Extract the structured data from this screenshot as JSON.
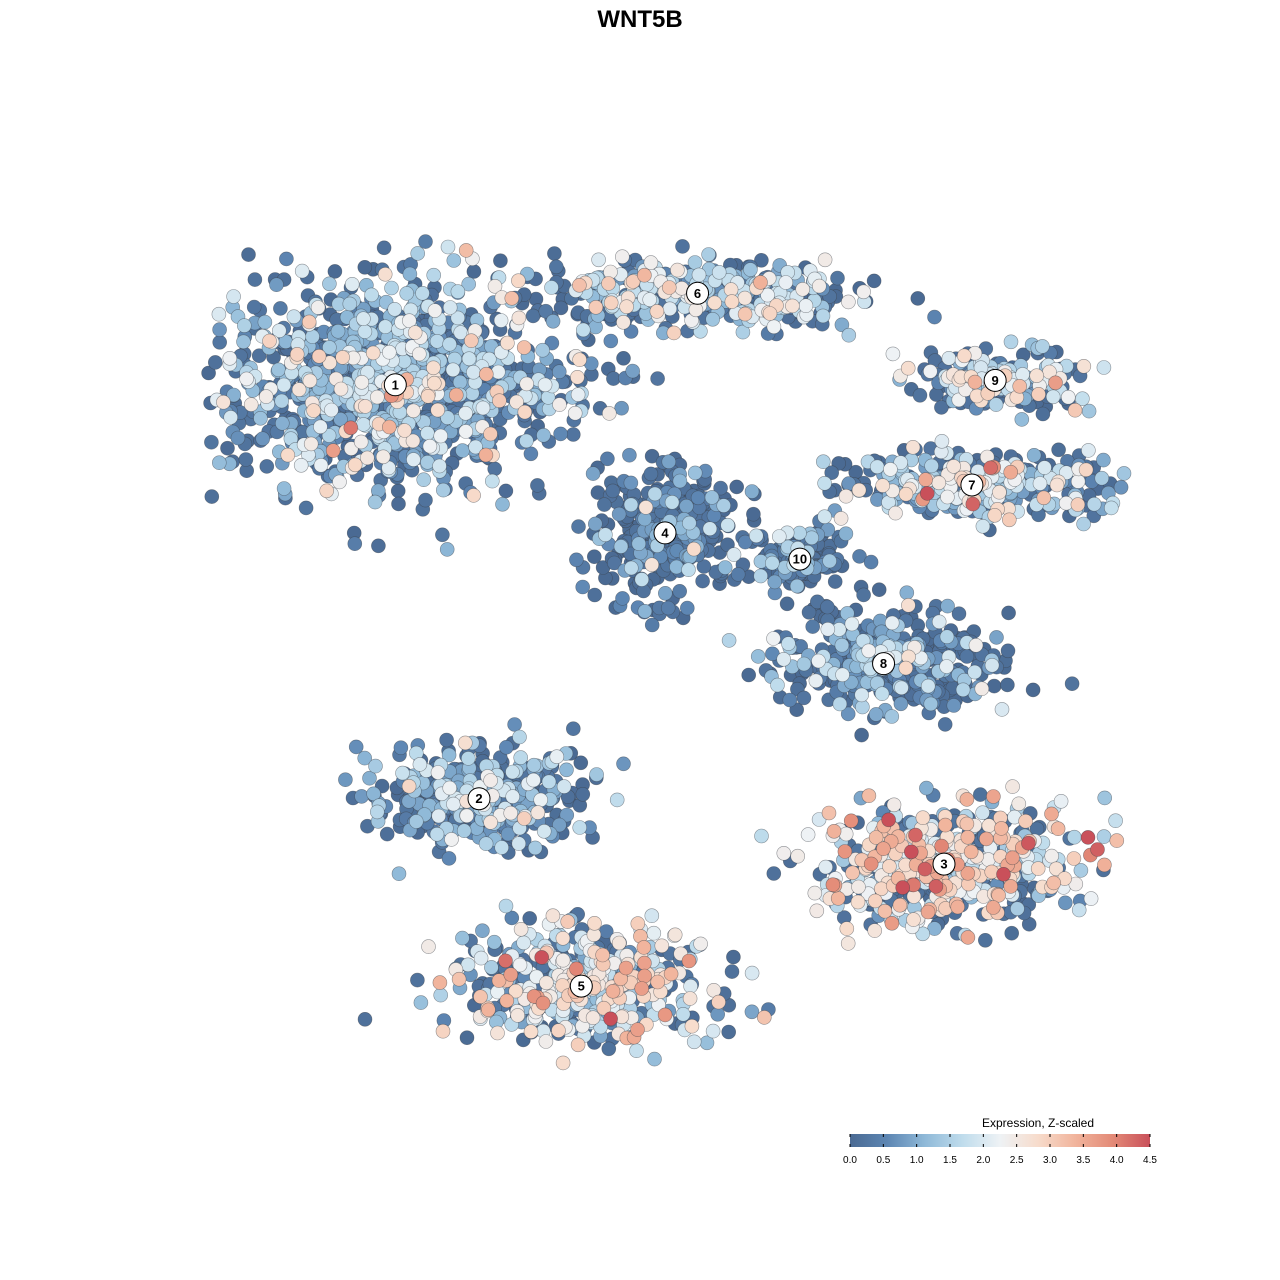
{
  "chart_data": {
    "type": "scatter",
    "title": "WNT5B",
    "xlabel": "",
    "ylabel": "",
    "grid": false,
    "legend": {
      "title": "Expression, Z-scaled",
      "placement": "bottom-right",
      "range": [
        0.0,
        4.5
      ],
      "ticks": [
        "0.0",
        "0.5",
        "1.0",
        "1.5",
        "2.0",
        "2.5",
        "3.0",
        "3.5",
        "4.0",
        "4.5"
      ],
      "colors": [
        "#4a6a93",
        "#5d86b3",
        "#8fb9d8",
        "#bfdcec",
        "#eef2f5",
        "#f7dccc",
        "#f1b49c",
        "#e38a77",
        "#c9505a"
      ]
    },
    "clusters": [
      {
        "label": "1",
        "x": -7.8,
        "y": 6.3,
        "spread_x": 4.0,
        "spread_y": 2.5,
        "mean_expr": 1.2
      },
      {
        "label": "2",
        "x": -6.0,
        "y": -3.2,
        "spread_x": 2.3,
        "spread_y": 1.3,
        "mean_expr": 0.9
      },
      {
        "label": "3",
        "x": 4.0,
        "y": -4.7,
        "spread_x": 3.0,
        "spread_y": 1.5,
        "mean_expr": 2.3
      },
      {
        "label": "4",
        "x": -2.0,
        "y": 2.9,
        "spread_x": 1.7,
        "spread_y": 1.6,
        "mean_expr": 0.1
      },
      {
        "label": "5",
        "x": -3.8,
        "y": -7.5,
        "spread_x": 3.0,
        "spread_y": 1.4,
        "mean_expr": 1.9
      },
      {
        "label": "6",
        "x": -1.3,
        "y": 8.4,
        "spread_x": 3.8,
        "spread_y": 0.8,
        "mean_expr": 1.4
      },
      {
        "label": "7",
        "x": 4.6,
        "y": 4.0,
        "spread_x": 3.0,
        "spread_y": 0.8,
        "mean_expr": 1.6
      },
      {
        "label": "8",
        "x": 2.7,
        "y": -0.1,
        "spread_x": 2.5,
        "spread_y": 1.3,
        "mean_expr": 0.5
      },
      {
        "label": "9",
        "x": 5.1,
        "y": 6.4,
        "spread_x": 2.0,
        "spread_y": 0.7,
        "mean_expr": 1.5
      },
      {
        "label": "10",
        "x": 0.9,
        "y": 2.3,
        "spread_x": 1.0,
        "spread_y": 0.8,
        "mean_expr": 0.4
      }
    ]
  }
}
